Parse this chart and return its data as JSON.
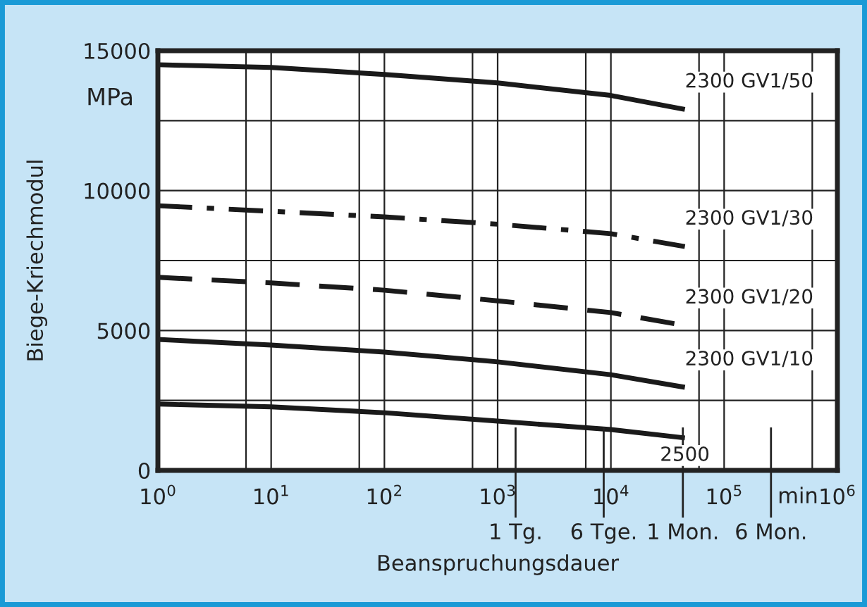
{
  "chart_data": {
    "type": "line",
    "xlabel": "Beanspruchungsdauer",
    "ylabel": "Biege-Kriechmodul",
    "log": "x",
    "grid": true,
    "legend": false,
    "marker": "none",
    "x": [
      1,
      10,
      100,
      1000,
      10000,
      45000
    ],
    "series": [
      {
        "name": "2300 GV1/50",
        "color": "#1a1a1a",
        "line_style": "solid",
        "values": [
          14500,
          14400,
          14150,
          13850,
          13400,
          12900
        ]
      },
      {
        "name": "2300 GV1/30",
        "color": "#1a1a1a",
        "line_style": "dashdot",
        "values": [
          9460,
          9260,
          9060,
          8800,
          8460,
          8000
        ]
      },
      {
        "name": "2300 GV1/20",
        "color": "#1a1a1a",
        "line_style": "dashed",
        "values": [
          6900,
          6700,
          6440,
          6060,
          5640,
          5180
        ]
      },
      {
        "name": "2300 GV1/10",
        "color": "#1a1a1a",
        "line_style": "solid",
        "values": [
          4680,
          4480,
          4230,
          3880,
          3420,
          2970
        ]
      },
      {
        "name": "2500",
        "color": "#1a1a1a",
        "line_style": "solid",
        "values": [
          2370,
          2270,
          2060,
          1760,
          1460,
          1160
        ]
      }
    ],
    "xlim": [
      1,
      1000000
    ],
    "xticks": [
      {
        "value": 1,
        "label": "10$^{0}$"
      },
      {
        "value": 6,
        "label": null
      },
      {
        "value": 10,
        "label": "10$^{1}$"
      },
      {
        "value": 60,
        "label": null
      },
      {
        "value": 100,
        "label": "10$^{2}$"
      },
      {
        "value": 600,
        "label": null
      },
      {
        "value": 1000,
        "label": "10$^{3}$"
      },
      {
        "value": 6000,
        "label": null
      },
      {
        "value": 10000,
        "label": "10$^{4}$"
      },
      {
        "value": 60000,
        "label": null
      },
      {
        "value": 100000,
        "label": "10$^{5}$"
      },
      {
        "value": 600000,
        "label": null
      },
      {
        "value": 1000000,
        "label": "10$^{6}$"
      }
    ],
    "ref_lines": [
      {
        "axis": "x",
        "value": 1440,
        "label": "1 Tg."
      },
      {
        "axis": "x",
        "value": 8640,
        "label": "6 Tge."
      },
      {
        "axis": "x",
        "value": 43200,
        "label": "1 Mon."
      },
      {
        "axis": "x",
        "value": 259200,
        "label": "6 Mon."
      }
    ],
    "ylim": [
      0,
      15000
    ],
    "yticks": [
      0,
      {
        "value": 2500,
        "label": null
      },
      5000,
      {
        "value": 7500,
        "label": null
      },
      10000,
      {
        "value": 12500,
        "label": null
      },
      15000
    ],
    "annotations": [
      "MPa",
      "min"
    ]
  }
}
